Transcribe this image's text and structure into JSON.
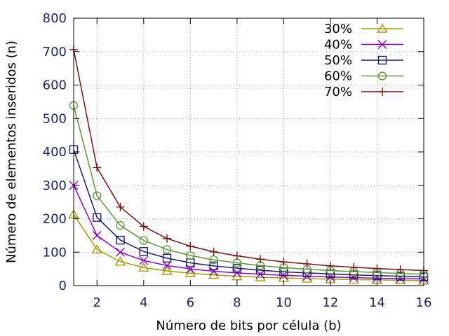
{
  "chart_data": {
    "type": "line",
    "title": "",
    "xlabel": "Número de bits por célula (b)",
    "ylabel": "Número de elementos inseridos (n)",
    "xlim": [
      1,
      16
    ],
    "ylim": [
      0,
      800
    ],
    "xticks": [
      2,
      4,
      6,
      8,
      10,
      12,
      14,
      16
    ],
    "yticks": [
      0,
      100,
      200,
      300,
      400,
      500,
      600,
      700,
      800
    ],
    "grid": true,
    "legend_position": "top-right",
    "x": [
      1,
      2,
      3,
      4,
      5,
      6,
      7,
      8,
      9,
      10,
      11,
      12,
      13,
      14,
      15,
      16
    ],
    "series": [
      {
        "name": "30%",
        "color": "#a0a000",
        "marker": "triangle",
        "values": [
          213,
          108,
          72,
          54,
          44,
          37,
          32,
          28,
          25,
          23,
          21,
          19,
          18,
          17,
          16,
          15
        ]
      },
      {
        "name": "40%",
        "color": "#9400d3",
        "marker": "x",
        "values": [
          300,
          150,
          100,
          75,
          60,
          50,
          43,
          38,
          34,
          31,
          28,
          26,
          24,
          22,
          21,
          20
        ]
      },
      {
        "name": "50%",
        "color": "#191970",
        "marker": "square",
        "values": [
          407,
          204,
          136,
          102,
          82,
          68,
          59,
          52,
          46,
          41,
          38,
          35,
          32,
          30,
          28,
          26
        ]
      },
      {
        "name": "60%",
        "color": "#5a9a32",
        "marker": "circle",
        "values": [
          539,
          269,
          180,
          135,
          108,
          90,
          77,
          68,
          60,
          54,
          49,
          45,
          42,
          39,
          36,
          34
        ]
      },
      {
        "name": "70%",
        "color": "#7b1010",
        "marker": "plus",
        "values": [
          706,
          353,
          235,
          177,
          141,
          118,
          101,
          89,
          79,
          71,
          65,
          59,
          55,
          51,
          48,
          45
        ]
      }
    ]
  }
}
